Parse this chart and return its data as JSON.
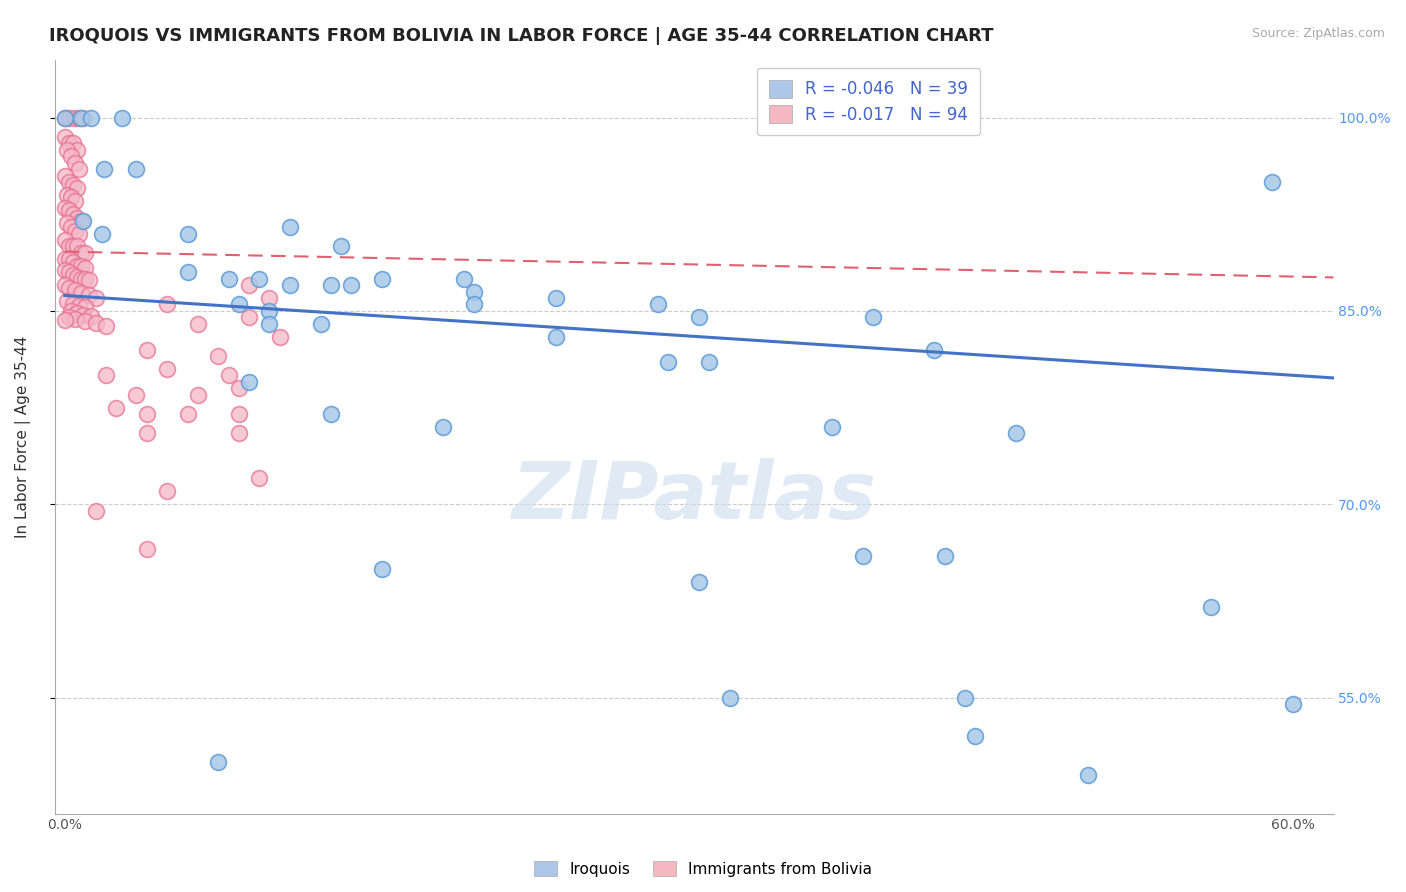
{
  "title": "IROQUOIS VS IMMIGRANTS FROM BOLIVIA IN LABOR FORCE | AGE 35-44 CORRELATION CHART",
  "source_text": "Source: ZipAtlas.com",
  "ylabel": "In Labor Force | Age 35-44",
  "xlim": [
    -0.005,
    0.62
  ],
  "ylim": [
    0.46,
    1.045
  ],
  "ytick_values": [
    0.55,
    0.7,
    0.85,
    1.0
  ],
  "ytick_labels": [
    "55.0%",
    "70.0%",
    "85.0%",
    "100.0%"
  ],
  "xtick_values": [
    0.0,
    0.6
  ],
  "xtick_labels": [
    "0.0%",
    "60.0%"
  ],
  "iroquois_color": "#a8c8e8",
  "iroquois_edge_color": "#5b9bd5",
  "bolivia_color": "#f4b8c8",
  "bolivia_edge_color": "#e87090",
  "iroquois_line_color": "#4472c4",
  "bolivia_line_color": "#e06070",
  "watermark": "ZIPatlas",
  "background_color": "#ffffff",
  "grid_color": "#cccccc",
  "title_fontsize": 13,
  "axis_fontsize": 11,
  "tick_fontsize": 10,
  "legend_bottom": [
    "Iroquois",
    "Immigrants from Bolivia"
  ],
  "iroquois_points": [
    [
      0.0,
      1.0
    ],
    [
      0.008,
      1.0
    ],
    [
      0.013,
      1.0
    ],
    [
      0.019,
      0.96
    ],
    [
      0.028,
      1.0
    ],
    [
      0.035,
      0.96
    ],
    [
      0.009,
      0.92
    ],
    [
      0.018,
      0.91
    ],
    [
      0.06,
      0.91
    ],
    [
      0.11,
      0.915
    ],
    [
      0.135,
      0.9
    ],
    [
      0.14,
      0.87
    ],
    [
      0.155,
      0.875
    ],
    [
      0.06,
      0.88
    ],
    [
      0.08,
      0.875
    ],
    [
      0.095,
      0.875
    ],
    [
      0.11,
      0.87
    ],
    [
      0.13,
      0.87
    ],
    [
      0.195,
      0.875
    ],
    [
      0.2,
      0.865
    ],
    [
      0.24,
      0.86
    ],
    [
      0.085,
      0.855
    ],
    [
      0.1,
      0.85
    ],
    [
      0.1,
      0.84
    ],
    [
      0.125,
      0.84
    ],
    [
      0.2,
      0.855
    ],
    [
      0.29,
      0.855
    ],
    [
      0.31,
      0.845
    ],
    [
      0.395,
      0.845
    ],
    [
      0.24,
      0.83
    ],
    [
      0.425,
      0.82
    ],
    [
      0.295,
      0.81
    ],
    [
      0.315,
      0.81
    ],
    [
      0.09,
      0.795
    ],
    [
      0.13,
      0.77
    ],
    [
      0.185,
      0.76
    ],
    [
      0.375,
      0.76
    ],
    [
      0.465,
      0.755
    ],
    [
      0.59,
      0.95
    ],
    [
      0.56,
      0.62
    ],
    [
      0.39,
      0.66
    ],
    [
      0.43,
      0.66
    ],
    [
      0.155,
      0.65
    ],
    [
      0.31,
      0.64
    ],
    [
      0.325,
      0.55
    ],
    [
      0.44,
      0.55
    ],
    [
      0.6,
      0.545
    ],
    [
      0.445,
      0.52
    ],
    [
      0.075,
      0.5
    ],
    [
      0.5,
      0.49
    ]
  ],
  "bolivia_points": [
    [
      0.0,
      1.0
    ],
    [
      0.002,
      1.0
    ],
    [
      0.005,
      1.0
    ],
    [
      0.007,
      1.0
    ],
    [
      0.009,
      1.0
    ],
    [
      0.0,
      0.985
    ],
    [
      0.002,
      0.98
    ],
    [
      0.004,
      0.98
    ],
    [
      0.006,
      0.975
    ],
    [
      0.001,
      0.975
    ],
    [
      0.003,
      0.97
    ],
    [
      0.005,
      0.965
    ],
    [
      0.007,
      0.96
    ],
    [
      0.0,
      0.955
    ],
    [
      0.002,
      0.95
    ],
    [
      0.004,
      0.948
    ],
    [
      0.006,
      0.945
    ],
    [
      0.001,
      0.94
    ],
    [
      0.003,
      0.938
    ],
    [
      0.005,
      0.935
    ],
    [
      0.0,
      0.93
    ],
    [
      0.002,
      0.928
    ],
    [
      0.004,
      0.925
    ],
    [
      0.006,
      0.922
    ],
    [
      0.008,
      0.92
    ],
    [
      0.001,
      0.918
    ],
    [
      0.003,
      0.915
    ],
    [
      0.005,
      0.912
    ],
    [
      0.007,
      0.91
    ],
    [
      0.0,
      0.905
    ],
    [
      0.002,
      0.9
    ],
    [
      0.004,
      0.9
    ],
    [
      0.006,
      0.9
    ],
    [
      0.008,
      0.895
    ],
    [
      0.01,
      0.895
    ],
    [
      0.0,
      0.89
    ],
    [
      0.002,
      0.89
    ],
    [
      0.004,
      0.888
    ],
    [
      0.006,
      0.885
    ],
    [
      0.008,
      0.885
    ],
    [
      0.01,
      0.883
    ],
    [
      0.0,
      0.882
    ],
    [
      0.002,
      0.88
    ],
    [
      0.004,
      0.878
    ],
    [
      0.006,
      0.876
    ],
    [
      0.008,
      0.875
    ],
    [
      0.01,
      0.875
    ],
    [
      0.012,
      0.874
    ],
    [
      0.0,
      0.87
    ],
    [
      0.002,
      0.868
    ],
    [
      0.005,
      0.866
    ],
    [
      0.008,
      0.864
    ],
    [
      0.012,
      0.862
    ],
    [
      0.015,
      0.86
    ],
    [
      0.001,
      0.858
    ],
    [
      0.004,
      0.855
    ],
    [
      0.007,
      0.854
    ],
    [
      0.01,
      0.853
    ],
    [
      0.003,
      0.85
    ],
    [
      0.006,
      0.848
    ],
    [
      0.009,
      0.847
    ],
    [
      0.013,
      0.846
    ],
    [
      0.002,
      0.845
    ],
    [
      0.005,
      0.844
    ],
    [
      0.0,
      0.843
    ],
    [
      0.01,
      0.842
    ],
    [
      0.015,
      0.841
    ],
    [
      0.02,
      0.838
    ],
    [
      0.05,
      0.855
    ],
    [
      0.09,
      0.87
    ],
    [
      0.1,
      0.86
    ],
    [
      0.065,
      0.84
    ],
    [
      0.09,
      0.845
    ],
    [
      0.04,
      0.82
    ],
    [
      0.075,
      0.815
    ],
    [
      0.105,
      0.83
    ],
    [
      0.02,
      0.8
    ],
    [
      0.05,
      0.805
    ],
    [
      0.08,
      0.8
    ],
    [
      0.035,
      0.785
    ],
    [
      0.065,
      0.785
    ],
    [
      0.085,
      0.79
    ],
    [
      0.025,
      0.775
    ],
    [
      0.04,
      0.77
    ],
    [
      0.06,
      0.77
    ],
    [
      0.085,
      0.77
    ],
    [
      0.04,
      0.755
    ],
    [
      0.085,
      0.755
    ],
    [
      0.095,
      0.72
    ],
    [
      0.05,
      0.71
    ],
    [
      0.015,
      0.695
    ],
    [
      0.04,
      0.665
    ]
  ],
  "iq_trend_x": [
    0.0,
    0.62
  ],
  "iq_trend_y": [
    0.862,
    0.798
  ],
  "bo_trend_x": [
    0.0,
    0.62
  ],
  "bo_trend_y": [
    0.896,
    0.876
  ]
}
